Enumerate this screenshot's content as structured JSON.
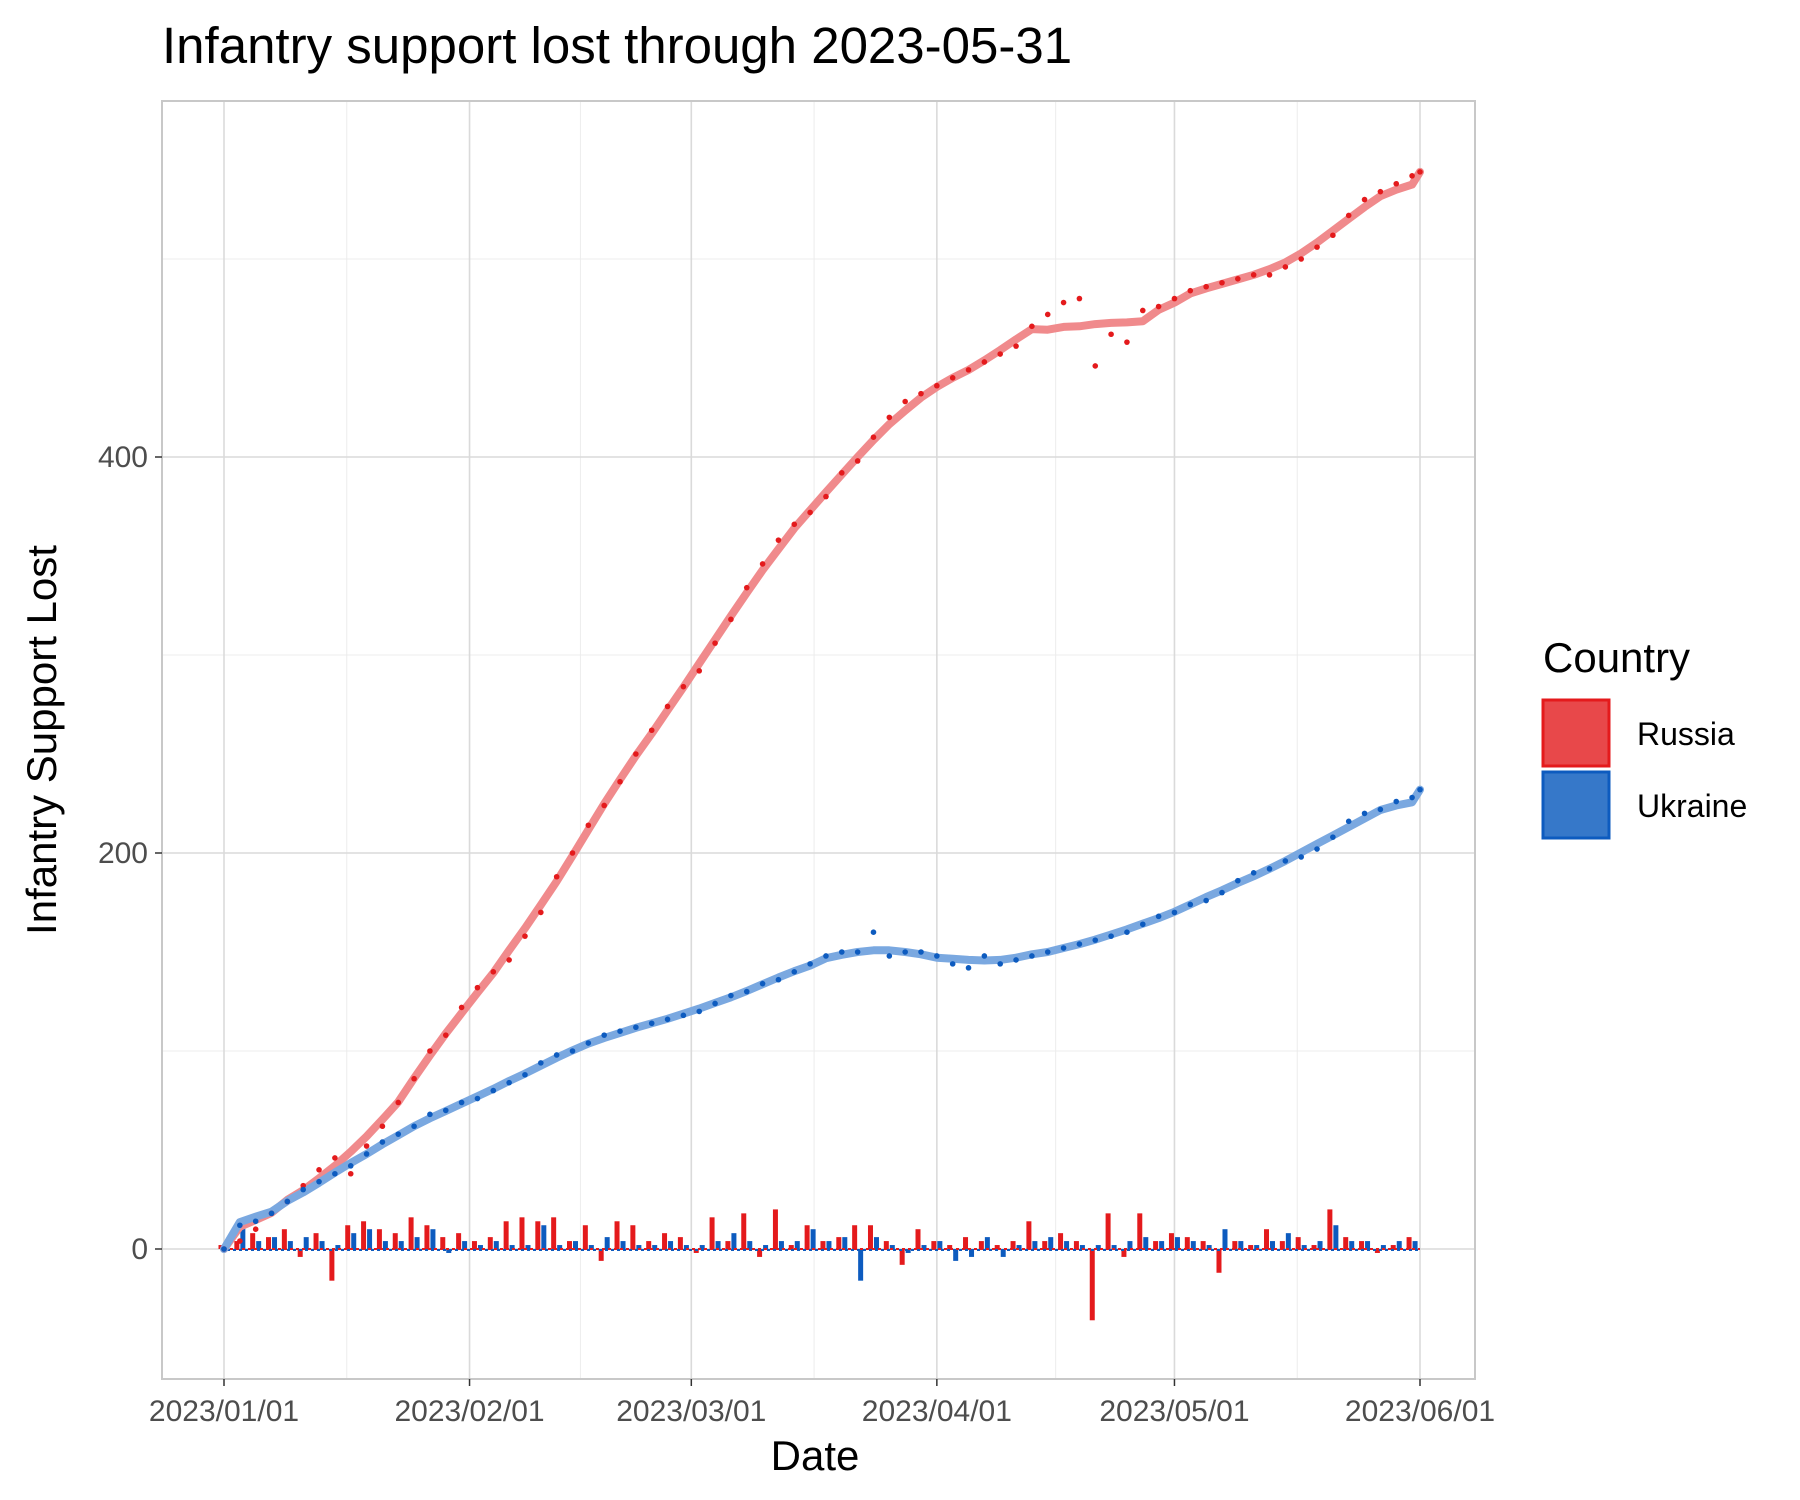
{
  "chart_data": {
    "type": "line",
    "title": "Infantry support lost through 2023-05-31",
    "xlabel": "Date",
    "ylabel": "Infantry Support Lost",
    "x_range": [
      "2023-01-01",
      "2023-05-31"
    ],
    "ylim": [
      -70,
      578
    ],
    "y_ticks": [
      0,
      200,
      400
    ],
    "x_tick_labels": [
      "2023/01/01",
      "2023/02/01",
      "2023/03/01",
      "2023/04/01",
      "2023/05/01",
      "2023/06/01"
    ],
    "x_tick_days": [
      0,
      31,
      59,
      90,
      120,
      151
    ],
    "grid": true,
    "legend": {
      "title": "Country",
      "position": "right",
      "entries": [
        "Russia",
        "Ukraine"
      ]
    },
    "colors": {
      "Russia": "#e41a1c",
      "Russia_fill": "#e8484a",
      "Russia_smooth": "#f08a8c",
      "Ukraine": "#0d5bbf",
      "Ukraine_fill": "#3678c9",
      "Ukraine_smooth": "#7aa8e0"
    },
    "series": [
      {
        "name": "Russia",
        "cumulative": [
          [
            0,
            0
          ],
          [
            2,
            4
          ],
          [
            4,
            10
          ],
          [
            6,
            18
          ],
          [
            8,
            24
          ],
          [
            10,
            32
          ],
          [
            12,
            40
          ],
          [
            14,
            46
          ],
          [
            16,
            38
          ],
          [
            18,
            52
          ],
          [
            20,
            62
          ],
          [
            22,
            74
          ],
          [
            24,
            86
          ],
          [
            26,
            100
          ],
          [
            28,
            108
          ],
          [
            30,
            122
          ],
          [
            32,
            132
          ],
          [
            34,
            140
          ],
          [
            36,
            146
          ],
          [
            38,
            158
          ],
          [
            40,
            170
          ],
          [
            42,
            188
          ],
          [
            44,
            200
          ],
          [
            46,
            214
          ],
          [
            48,
            224
          ],
          [
            50,
            236
          ],
          [
            52,
            250
          ],
          [
            54,
            262
          ],
          [
            56,
            274
          ],
          [
            58,
            284
          ],
          [
            60,
            292
          ],
          [
            62,
            306
          ],
          [
            64,
            318
          ],
          [
            66,
            334
          ],
          [
            68,
            346
          ],
          [
            70,
            358
          ],
          [
            72,
            366
          ],
          [
            74,
            372
          ],
          [
            76,
            380
          ],
          [
            78,
            392
          ],
          [
            80,
            398
          ],
          [
            82,
            410
          ],
          [
            84,
            420
          ],
          [
            86,
            428
          ],
          [
            88,
            432
          ],
          [
            90,
            436
          ],
          [
            92,
            440
          ],
          [
            94,
            444
          ],
          [
            96,
            448
          ],
          [
            98,
            452
          ],
          [
            100,
            456
          ],
          [
            102,
            466
          ],
          [
            104,
            472
          ],
          [
            106,
            478
          ],
          [
            108,
            480
          ],
          [
            110,
            446
          ],
          [
            112,
            462
          ],
          [
            114,
            458
          ],
          [
            116,
            474
          ],
          [
            118,
            476
          ],
          [
            120,
            480
          ],
          [
            122,
            484
          ],
          [
            124,
            486
          ],
          [
            126,
            488
          ],
          [
            128,
            490
          ],
          [
            130,
            492
          ],
          [
            132,
            492
          ],
          [
            134,
            496
          ],
          [
            136,
            500
          ],
          [
            138,
            506
          ],
          [
            140,
            512
          ],
          [
            142,
            522
          ],
          [
            144,
            530
          ],
          [
            146,
            534
          ],
          [
            148,
            538
          ],
          [
            150,
            542
          ],
          [
            151,
            544
          ]
        ],
        "daily": [
          [
            0,
            2
          ],
          [
            2,
            4
          ],
          [
            4,
            8
          ],
          [
            6,
            6
          ],
          [
            8,
            10
          ],
          [
            10,
            -4
          ],
          [
            12,
            8
          ],
          [
            14,
            -16
          ],
          [
            16,
            12
          ],
          [
            18,
            14
          ],
          [
            20,
            10
          ],
          [
            22,
            8
          ],
          [
            24,
            16
          ],
          [
            26,
            12
          ],
          [
            28,
            6
          ],
          [
            30,
            8
          ],
          [
            32,
            4
          ],
          [
            34,
            6
          ],
          [
            36,
            14
          ],
          [
            38,
            16
          ],
          [
            40,
            14
          ],
          [
            42,
            16
          ],
          [
            44,
            4
          ],
          [
            46,
            12
          ],
          [
            48,
            -6
          ],
          [
            50,
            14
          ],
          [
            52,
            12
          ],
          [
            54,
            4
          ],
          [
            56,
            8
          ],
          [
            58,
            6
          ],
          [
            60,
            -2
          ],
          [
            62,
            16
          ],
          [
            64,
            4
          ],
          [
            66,
            18
          ],
          [
            68,
            -4
          ],
          [
            70,
            20
          ],
          [
            72,
            2
          ],
          [
            74,
            12
          ],
          [
            76,
            4
          ],
          [
            78,
            6
          ],
          [
            80,
            12
          ],
          [
            82,
            12
          ],
          [
            84,
            4
          ],
          [
            86,
            -8
          ],
          [
            88,
            10
          ],
          [
            90,
            4
          ],
          [
            92,
            2
          ],
          [
            94,
            6
          ],
          [
            96,
            4
          ],
          [
            98,
            2
          ],
          [
            100,
            4
          ],
          [
            102,
            14
          ],
          [
            104,
            4
          ],
          [
            106,
            8
          ],
          [
            108,
            4
          ],
          [
            110,
            -36
          ],
          [
            112,
            18
          ],
          [
            114,
            -4
          ],
          [
            116,
            18
          ],
          [
            118,
            4
          ],
          [
            120,
            8
          ],
          [
            122,
            6
          ],
          [
            124,
            4
          ],
          [
            126,
            -12
          ],
          [
            128,
            4
          ],
          [
            130,
            2
          ],
          [
            132,
            10
          ],
          [
            134,
            4
          ],
          [
            136,
            6
          ],
          [
            138,
            2
          ],
          [
            140,
            20
          ],
          [
            142,
            6
          ],
          [
            144,
            4
          ],
          [
            146,
            -2
          ],
          [
            148,
            2
          ],
          [
            150,
            6
          ]
        ]
      },
      {
        "name": "Ukraine",
        "cumulative": [
          [
            0,
            0
          ],
          [
            2,
            12
          ],
          [
            4,
            14
          ],
          [
            6,
            18
          ],
          [
            8,
            24
          ],
          [
            10,
            30
          ],
          [
            12,
            34
          ],
          [
            14,
            38
          ],
          [
            16,
            42
          ],
          [
            18,
            48
          ],
          [
            20,
            54
          ],
          [
            22,
            58
          ],
          [
            24,
            62
          ],
          [
            26,
            68
          ],
          [
            28,
            70
          ],
          [
            30,
            74
          ],
          [
            32,
            76
          ],
          [
            34,
            80
          ],
          [
            36,
            84
          ],
          [
            38,
            88
          ],
          [
            40,
            94
          ],
          [
            42,
            98
          ],
          [
            44,
            100
          ],
          [
            46,
            104
          ],
          [
            48,
            108
          ],
          [
            50,
            110
          ],
          [
            52,
            112
          ],
          [
            54,
            114
          ],
          [
            56,
            116
          ],
          [
            58,
            118
          ],
          [
            60,
            120
          ],
          [
            62,
            124
          ],
          [
            64,
            128
          ],
          [
            66,
            130
          ],
          [
            68,
            134
          ],
          [
            70,
            136
          ],
          [
            72,
            140
          ],
          [
            74,
            144
          ],
          [
            76,
            148
          ],
          [
            78,
            150
          ],
          [
            80,
            150
          ],
          [
            82,
            160
          ],
          [
            84,
            148
          ],
          [
            86,
            150
          ],
          [
            88,
            150
          ],
          [
            90,
            148
          ],
          [
            92,
            144
          ],
          [
            94,
            142
          ],
          [
            96,
            148
          ],
          [
            98,
            144
          ],
          [
            100,
            146
          ],
          [
            102,
            148
          ],
          [
            104,
            150
          ],
          [
            106,
            152
          ],
          [
            108,
            154
          ],
          [
            110,
            156
          ],
          [
            112,
            158
          ],
          [
            114,
            160
          ],
          [
            116,
            164
          ],
          [
            118,
            168
          ],
          [
            120,
            170
          ],
          [
            122,
            174
          ],
          [
            124,
            176
          ],
          [
            126,
            180
          ],
          [
            128,
            186
          ],
          [
            130,
            190
          ],
          [
            132,
            192
          ],
          [
            134,
            196
          ],
          [
            136,
            198
          ],
          [
            138,
            202
          ],
          [
            140,
            208
          ],
          [
            142,
            216
          ],
          [
            144,
            220
          ],
          [
            146,
            222
          ],
          [
            148,
            226
          ],
          [
            150,
            228
          ],
          [
            151,
            232
          ]
        ],
        "daily": [
          [
            0,
            2
          ],
          [
            2,
            12
          ],
          [
            4,
            4
          ],
          [
            6,
            6
          ],
          [
            8,
            4
          ],
          [
            10,
            6
          ],
          [
            12,
            4
          ],
          [
            14,
            2
          ],
          [
            16,
            8
          ],
          [
            18,
            10
          ],
          [
            20,
            4
          ],
          [
            22,
            4
          ],
          [
            24,
            6
          ],
          [
            26,
            10
          ],
          [
            28,
            -2
          ],
          [
            30,
            4
          ],
          [
            32,
            2
          ],
          [
            34,
            4
          ],
          [
            36,
            2
          ],
          [
            38,
            2
          ],
          [
            40,
            12
          ],
          [
            42,
            2
          ],
          [
            44,
            4
          ],
          [
            46,
            2
          ],
          [
            48,
            6
          ],
          [
            50,
            4
          ],
          [
            52,
            2
          ],
          [
            54,
            2
          ],
          [
            56,
            4
          ],
          [
            58,
            2
          ],
          [
            60,
            2
          ],
          [
            62,
            4
          ],
          [
            64,
            8
          ],
          [
            66,
            4
          ],
          [
            68,
            2
          ],
          [
            70,
            4
          ],
          [
            72,
            4
          ],
          [
            74,
            10
          ],
          [
            76,
            4
          ],
          [
            78,
            6
          ],
          [
            80,
            -16
          ],
          [
            82,
            6
          ],
          [
            84,
            2
          ],
          [
            86,
            -2
          ],
          [
            88,
            2
          ],
          [
            90,
            4
          ],
          [
            92,
            -6
          ],
          [
            94,
            -4
          ],
          [
            96,
            6
          ],
          [
            98,
            -4
          ],
          [
            100,
            2
          ],
          [
            102,
            4
          ],
          [
            104,
            6
          ],
          [
            106,
            4
          ],
          [
            108,
            2
          ],
          [
            110,
            2
          ],
          [
            112,
            2
          ],
          [
            114,
            4
          ],
          [
            116,
            6
          ],
          [
            118,
            4
          ],
          [
            120,
            6
          ],
          [
            122,
            4
          ],
          [
            124,
            2
          ],
          [
            126,
            10
          ],
          [
            128,
            4
          ],
          [
            130,
            2
          ],
          [
            132,
            4
          ],
          [
            134,
            8
          ],
          [
            136,
            2
          ],
          [
            138,
            4
          ],
          [
            140,
            12
          ],
          [
            142,
            4
          ],
          [
            144,
            4
          ],
          [
            146,
            2
          ],
          [
            148,
            4
          ],
          [
            150,
            4
          ]
        ]
      }
    ]
  }
}
